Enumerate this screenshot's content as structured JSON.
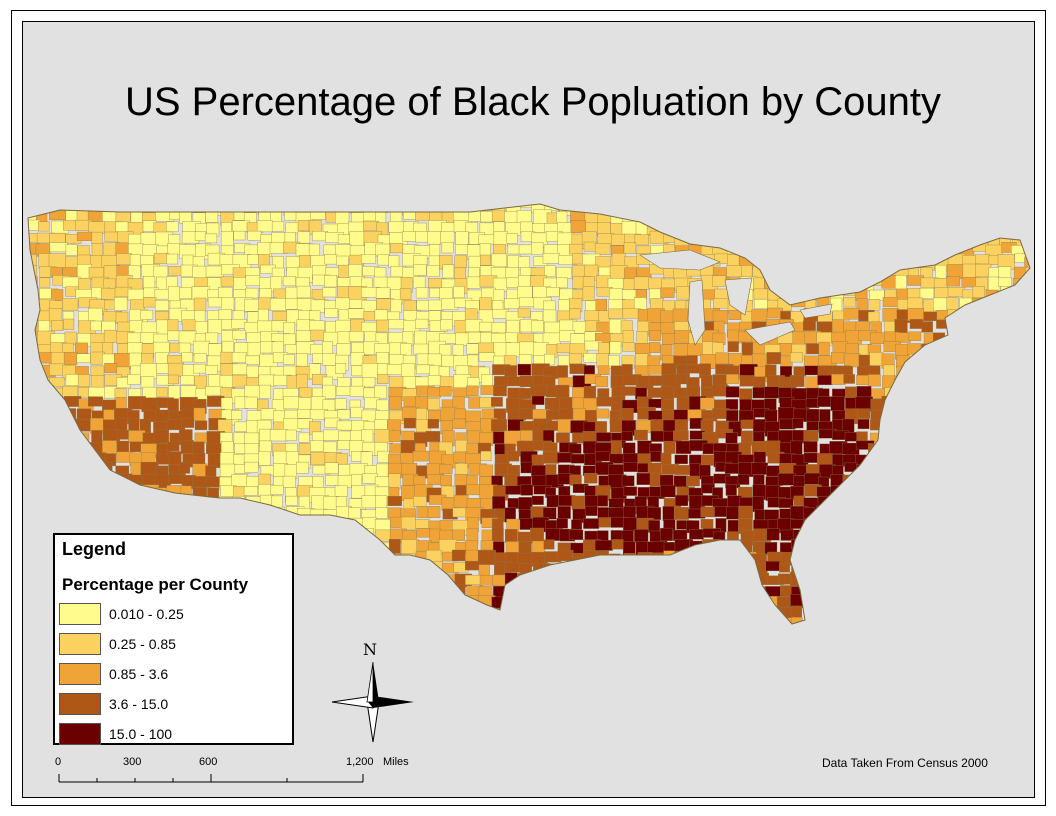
{
  "map": {
    "title": "US Percentage of Black Popluation by County",
    "credit": "Data Taken From Census 2000",
    "legend": {
      "title": "Legend",
      "subtitle": "Percentage per County",
      "classes": [
        {
          "label": "0.010 - 0.25",
          "color": "#fffb8c"
        },
        {
          "label": "0.25 - 0.85",
          "color": "#fbd15f"
        },
        {
          "label": "0.85 - 3.6",
          "color": "#f0a337"
        },
        {
          "label": "3.6 - 15.0",
          "color": "#ae5716"
        },
        {
          "label": "15.0 - 100",
          "color": "#6b0000"
        }
      ]
    },
    "north_arrow": {
      "label": "N"
    },
    "scale_bar": {
      "ticks": [
        "0",
        "300",
        "600",
        "1,200"
      ],
      "unit": "Miles"
    },
    "background_color": "#e1e1e1"
  }
}
